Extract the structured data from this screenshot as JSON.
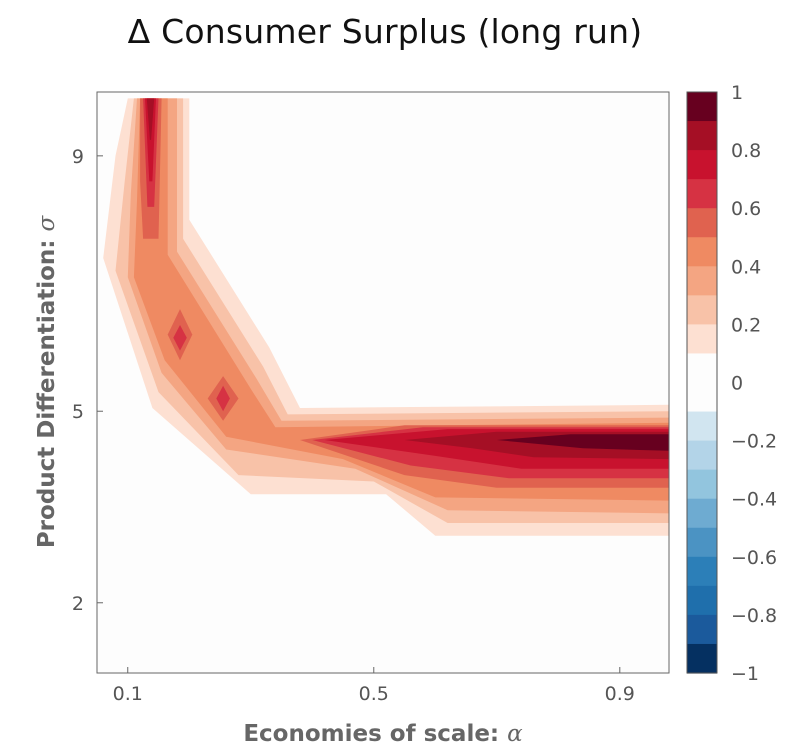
{
  "chart_data": {
    "type": "contour",
    "title": "Δ Consumer Surplus (long run)",
    "xlabel": "Economies of scale: ",
    "xlabel_symbol": "α",
    "ylabel": "Product Differentiation: ",
    "ylabel_symbol": "σ",
    "xlim": [
      0.05,
      0.98
    ],
    "ylim": [
      0.9,
      10
    ],
    "x_ticks": [
      {
        "value": 0.1,
        "label": "0.1"
      },
      {
        "value": 0.5,
        "label": "0.5"
      },
      {
        "value": 0.9,
        "label": "0.9"
      }
    ],
    "y_ticks": [
      {
        "value": 2,
        "label": "2"
      },
      {
        "value": 5,
        "label": "5"
      },
      {
        "value": 9,
        "label": "9"
      }
    ],
    "colorbar": {
      "range": [
        -1,
        1
      ],
      "ticks": [
        {
          "value": 1,
          "label": "1"
        },
        {
          "value": 0.8,
          "label": "0.8"
        },
        {
          "value": 0.6,
          "label": "0.6"
        },
        {
          "value": 0.4,
          "label": "0.4"
        },
        {
          "value": 0.2,
          "label": "0.2"
        },
        {
          "value": 0,
          "label": "0"
        },
        {
          "value": -0.2,
          "label": "−0.2"
        },
        {
          "value": -0.4,
          "label": "−0.4"
        },
        {
          "value": -0.6,
          "label": "−0.6"
        },
        {
          "value": -0.8,
          "label": "−0.8"
        },
        {
          "value": -1,
          "label": "−1"
        }
      ],
      "levels": [
        {
          "from": 0.9,
          "to": 1.0,
          "color": "#67001f"
        },
        {
          "from": 0.8,
          "to": 0.9,
          "color": "#a50f25"
        },
        {
          "from": 0.7,
          "to": 0.8,
          "color": "#c8122e"
        },
        {
          "from": 0.6,
          "to": 0.7,
          "color": "#d63243"
        },
        {
          "from": 0.5,
          "to": 0.6,
          "color": "#e0624f"
        },
        {
          "from": 0.4,
          "to": 0.5,
          "color": "#ef8a62"
        },
        {
          "from": 0.3,
          "to": 0.4,
          "color": "#f4a582"
        },
        {
          "from": 0.2,
          "to": 0.3,
          "color": "#f8c2a8"
        },
        {
          "from": 0.1,
          "to": 0.2,
          "color": "#fde0d2"
        },
        {
          "from": 0.0,
          "to": 0.1,
          "color": "#fdfdfd"
        },
        {
          "from": -0.1,
          "to": 0.0,
          "color": "#fdfdfd"
        },
        {
          "from": -0.2,
          "to": -0.1,
          "color": "#d1e5f0"
        },
        {
          "from": -0.3,
          "to": -0.2,
          "color": "#b3d4e8"
        },
        {
          "from": -0.4,
          "to": -0.3,
          "color": "#92c5de"
        },
        {
          "from": -0.5,
          "to": -0.4,
          "color": "#6eabd1"
        },
        {
          "from": -0.6,
          "to": -0.5,
          "color": "#4b93c3"
        },
        {
          "from": -0.7,
          "to": -0.6,
          "color": "#2c7fb8"
        },
        {
          "from": -0.8,
          "to": -0.7,
          "color": "#1f6fac"
        },
        {
          "from": -0.9,
          "to": -0.8,
          "color": "#1b5a9c"
        },
        {
          "from": -1.0,
          "to": -0.9,
          "color": "#053061"
        }
      ]
    },
    "contour_levels": [
      {
        "level": 0.1,
        "color": "#fde0d2",
        "points": [
          [
            0.1,
            9.9
          ],
          [
            0.2,
            9.9
          ],
          [
            0.2,
            8.0
          ],
          [
            0.33,
            6.0
          ],
          [
            0.38,
            5.05
          ],
          [
            0.98,
            5.1
          ],
          [
            0.98,
            3.05
          ],
          [
            0.6,
            3.05
          ],
          [
            0.52,
            3.7
          ],
          [
            0.3,
            3.7
          ],
          [
            0.14,
            5.05
          ],
          [
            0.06,
            7.4
          ],
          [
            0.08,
            9.0
          ]
        ]
      },
      {
        "level": 0.2,
        "color": "#f8c2a8",
        "points": [
          [
            0.11,
            9.9
          ],
          [
            0.19,
            9.9
          ],
          [
            0.19,
            7.7
          ],
          [
            0.32,
            5.7
          ],
          [
            0.36,
            4.95
          ],
          [
            0.98,
            5.0
          ],
          [
            0.98,
            3.25
          ],
          [
            0.62,
            3.25
          ],
          [
            0.5,
            3.9
          ],
          [
            0.28,
            4.0
          ],
          [
            0.15,
            5.3
          ],
          [
            0.08,
            7.2
          ],
          [
            0.095,
            8.6
          ]
        ]
      },
      {
        "level": 0.3,
        "color": "#f4a582",
        "points": [
          [
            0.115,
            9.9
          ],
          [
            0.18,
            9.9
          ],
          [
            0.18,
            7.5
          ],
          [
            0.31,
            5.5
          ],
          [
            0.35,
            4.85
          ],
          [
            0.98,
            4.9
          ],
          [
            0.98,
            3.4
          ],
          [
            0.62,
            3.45
          ],
          [
            0.47,
            4.1
          ],
          [
            0.26,
            4.4
          ],
          [
            0.155,
            5.6
          ],
          [
            0.1,
            7.1
          ],
          [
            0.105,
            8.4
          ]
        ]
      },
      {
        "level": 0.4,
        "color": "#ef8a62",
        "points": [
          [
            0.12,
            9.9
          ],
          [
            0.165,
            9.9
          ],
          [
            0.165,
            7.45
          ],
          [
            0.3,
            5.35
          ],
          [
            0.34,
            4.75
          ],
          [
            0.98,
            4.82
          ],
          [
            0.98,
            3.6
          ],
          [
            0.6,
            3.65
          ],
          [
            0.45,
            4.25
          ],
          [
            0.26,
            4.6
          ],
          [
            0.16,
            5.8
          ],
          [
            0.11,
            7.1
          ],
          [
            0.115,
            8.3
          ]
        ]
      },
      {
        "level": 0.5,
        "color": "#e0624f",
        "points": [
          [
            0.12,
            9.9
          ],
          [
            0.155,
            9.9
          ],
          [
            0.15,
            7.7
          ],
          [
            0.125,
            7.7
          ],
          [
            0.12,
            8.6
          ]
        ]
      },
      {
        "level": 0.5,
        "color": "#e0624f",
        "points": [
          [
            0.38,
            4.55
          ],
          [
            0.55,
            4.78
          ],
          [
            0.98,
            4.78
          ],
          [
            0.98,
            3.8
          ],
          [
            0.7,
            3.8
          ],
          [
            0.55,
            4.0
          ]
        ]
      },
      {
        "level": 0.5,
        "color": "#e0624f",
        "points": [
          [
            0.185,
            6.6
          ],
          [
            0.205,
            6.2
          ],
          [
            0.185,
            5.8
          ],
          [
            0.165,
            6.2
          ]
        ]
      },
      {
        "level": 0.5,
        "color": "#e0624f",
        "points": [
          [
            0.255,
            5.55
          ],
          [
            0.28,
            5.2
          ],
          [
            0.255,
            4.85
          ],
          [
            0.23,
            5.2
          ]
        ]
      },
      {
        "level": 0.6,
        "color": "#d63243",
        "points": [
          [
            0.125,
            9.9
          ],
          [
            0.15,
            9.9
          ],
          [
            0.143,
            8.2
          ],
          [
            0.132,
            8.2
          ]
        ]
      },
      {
        "level": 0.6,
        "color": "#d63243",
        "points": [
          [
            0.4,
            4.55
          ],
          [
            0.58,
            4.75
          ],
          [
            0.98,
            4.75
          ],
          [
            0.98,
            3.95
          ],
          [
            0.72,
            3.95
          ],
          [
            0.56,
            4.15
          ]
        ]
      },
      {
        "level": 0.6,
        "color": "#d63243",
        "points": [
          [
            0.185,
            6.35
          ],
          [
            0.196,
            6.15
          ],
          [
            0.185,
            5.95
          ],
          [
            0.174,
            6.15
          ]
        ]
      },
      {
        "level": 0.6,
        "color": "#d63243",
        "points": [
          [
            0.255,
            5.4
          ],
          [
            0.266,
            5.2
          ],
          [
            0.255,
            5.0
          ],
          [
            0.244,
            5.2
          ]
        ]
      },
      {
        "level": 0.7,
        "color": "#c8122e",
        "points": [
          [
            0.128,
            9.9
          ],
          [
            0.146,
            9.9
          ],
          [
            0.14,
            8.6
          ],
          [
            0.135,
            8.6
          ]
        ]
      },
      {
        "level": 0.7,
        "color": "#c8122e",
        "points": [
          [
            0.42,
            4.55
          ],
          [
            0.62,
            4.72
          ],
          [
            0.98,
            4.72
          ],
          [
            0.98,
            4.1
          ],
          [
            0.74,
            4.1
          ],
          [
            0.6,
            4.3
          ]
        ]
      },
      {
        "level": 0.8,
        "color": "#a50f25",
        "points": [
          [
            0.131,
            9.9
          ],
          [
            0.143,
            9.9
          ],
          [
            0.138,
            9.25
          ],
          [
            0.136,
            9.25
          ]
        ]
      },
      {
        "level": 0.8,
        "color": "#a50f25",
        "points": [
          [
            0.55,
            4.55
          ],
          [
            0.7,
            4.68
          ],
          [
            0.98,
            4.68
          ],
          [
            0.98,
            4.25
          ],
          [
            0.76,
            4.28
          ],
          [
            0.66,
            4.42
          ]
        ]
      },
      {
        "level": 0.9,
        "color": "#67001f",
        "points": [
          [
            0.7,
            4.55
          ],
          [
            0.82,
            4.64
          ],
          [
            0.98,
            4.64
          ],
          [
            0.98,
            4.38
          ],
          [
            0.84,
            4.42
          ]
        ]
      }
    ]
  }
}
